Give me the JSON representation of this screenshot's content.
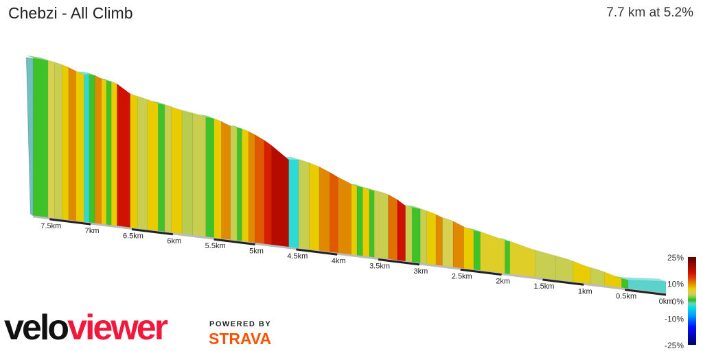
{
  "header": {
    "title": "Chebzi - All Climb",
    "summary": "7.7 km at 5.2%"
  },
  "branding": {
    "logo_part1": "velo",
    "logo_part2": "viewer",
    "powered_by": "POWERED BY",
    "strava": "STRAVA"
  },
  "chart_data": {
    "type": "area",
    "subtype": "3d-gradient-profile",
    "xlabel": "",
    "x_unit": "km",
    "xlim": [
      0,
      7.7
    ],
    "x_direction": "right-to-left",
    "x_ticks": [
      "0km",
      "0.5km",
      "1km",
      "1.5km",
      "2km",
      "2.5km",
      "3km",
      "3.5km",
      "4km",
      "4.5km",
      "5km",
      "5.5km",
      "6km",
      "6.5km",
      "7km",
      "7.5km"
    ],
    "x_tick_values": [
      0,
      0.5,
      1,
      1.5,
      2,
      2.5,
      3,
      3.5,
      4,
      4.5,
      5,
      5.5,
      6,
      6.5,
      7,
      7.5
    ],
    "segments_columns": [
      "start_km",
      "end_km",
      "grade_pct"
    ],
    "segments": [
      [
        0,
        0.46,
        -2
      ],
      [
        0.46,
        0.54,
        1
      ],
      [
        0.54,
        0.75,
        7
      ],
      [
        0.75,
        0.92,
        4
      ],
      [
        0.92,
        1.13,
        7
      ],
      [
        1.13,
        1.34,
        4
      ],
      [
        1.34,
        1.59,
        4
      ],
      [
        1.59,
        1.9,
        6
      ],
      [
        1.9,
        1.96,
        1
      ],
      [
        1.96,
        2.26,
        6
      ],
      [
        2.26,
        2.34,
        1
      ],
      [
        2.34,
        2.46,
        7
      ],
      [
        2.46,
        2.59,
        10
      ],
      [
        2.59,
        2.72,
        5
      ],
      [
        2.72,
        2.8,
        10
      ],
      [
        2.8,
        2.91,
        7
      ],
      [
        2.91,
        2.99,
        4
      ],
      [
        2.99,
        3.09,
        1
      ],
      [
        3.09,
        3.17,
        4
      ],
      [
        3.17,
        3.27,
        16
      ],
      [
        3.27,
        3.38,
        11
      ],
      [
        3.38,
        3.55,
        4
      ],
      [
        3.55,
        3.61,
        1
      ],
      [
        3.61,
        3.69,
        7
      ],
      [
        3.69,
        3.76,
        1
      ],
      [
        3.76,
        3.83,
        7
      ],
      [
        3.83,
        3.99,
        10
      ],
      [
        3.99,
        4.09,
        12
      ],
      [
        4.09,
        4.22,
        10
      ],
      [
        4.22,
        4.34,
        7
      ],
      [
        4.34,
        4.47,
        4
      ],
      [
        4.47,
        4.59,
        -3
      ],
      [
        4.59,
        4.8,
        18
      ],
      [
        4.8,
        4.89,
        15
      ],
      [
        4.89,
        5.0,
        12
      ],
      [
        5.0,
        5.08,
        10
      ],
      [
        5.08,
        5.16,
        7
      ],
      [
        5.16,
        5.22,
        1
      ],
      [
        5.22,
        5.3,
        4
      ],
      [
        5.3,
        5.41,
        10
      ],
      [
        5.41,
        5.5,
        7
      ],
      [
        5.5,
        5.6,
        1
      ],
      [
        5.6,
        5.76,
        4
      ],
      [
        5.76,
        5.89,
        3
      ],
      [
        5.89,
        6.02,
        7
      ],
      [
        6.02,
        6.1,
        4
      ],
      [
        6.1,
        6.18,
        1
      ],
      [
        6.18,
        6.31,
        7
      ],
      [
        6.31,
        6.43,
        4
      ],
      [
        6.43,
        6.52,
        7
      ],
      [
        6.52,
        6.68,
        16
      ],
      [
        6.68,
        6.75,
        7
      ],
      [
        6.75,
        6.81,
        1
      ],
      [
        6.81,
        6.87,
        7
      ],
      [
        6.87,
        6.95,
        10
      ],
      [
        6.95,
        7.02,
        1
      ],
      [
        7.02,
        7.08,
        -3
      ],
      [
        7.08,
        7.18,
        7
      ],
      [
        7.18,
        7.27,
        10
      ],
      [
        7.27,
        7.35,
        7
      ],
      [
        7.35,
        7.44,
        4
      ],
      [
        7.44,
        7.52,
        5
      ],
      [
        7.52,
        7.7,
        1
      ]
    ],
    "colorbar": {
      "labels": [
        "25%",
        "10%",
        "0%",
        "-10%",
        "-25%"
      ],
      "values": [
        25,
        10,
        0,
        -10,
        -25
      ],
      "stops": [
        {
          "grade": -25,
          "color": "#000066"
        },
        {
          "grade": -15,
          "color": "#0010ff"
        },
        {
          "grade": -8,
          "color": "#00a0ff"
        },
        {
          "grade": -4,
          "color": "#00e0e0"
        },
        {
          "grade": -1.5,
          "color": "#70d0c8"
        },
        {
          "grade": 0.5,
          "color": "#20c020"
        },
        {
          "grade": 3,
          "color": "#b8cc50"
        },
        {
          "grade": 5,
          "color": "#d8d050"
        },
        {
          "grade": 7,
          "color": "#e8cc00"
        },
        {
          "grade": 10,
          "color": "#e08800"
        },
        {
          "grade": 13,
          "color": "#e04000"
        },
        {
          "grade": 16,
          "color": "#d01000"
        },
        {
          "grade": 25,
          "color": "#5a0000"
        }
      ]
    }
  }
}
